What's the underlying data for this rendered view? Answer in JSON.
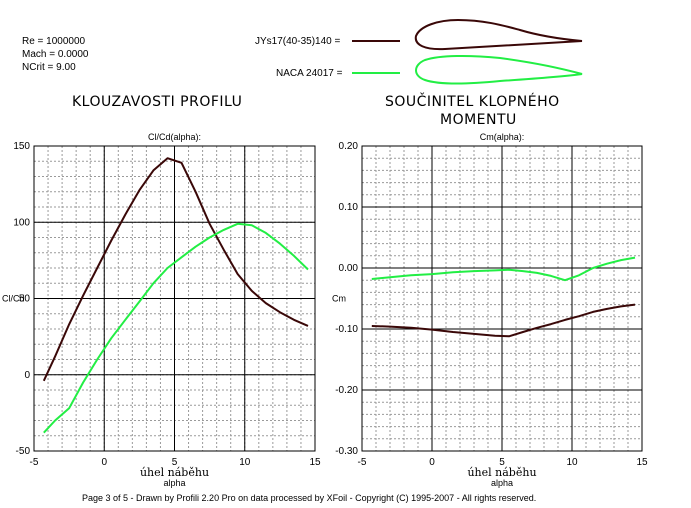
{
  "header": {
    "params": [
      "Re = 1000000",
      "Mach = 0.0000",
      "NCrit = 9.00"
    ],
    "profiles": [
      {
        "label": "JYs17(40-35)140 =",
        "color": "#3a0808"
      },
      {
        "label": "NACA 24017 =",
        "color": "#22ee44"
      }
    ]
  },
  "titles": {
    "left": "KLOUZAVOSTI PROFILU",
    "right_line1": "SOUČINITEL KLOPNÉHO",
    "right_line2": "MOMENTU"
  },
  "footer": "Page 3 of 5   -   Drawn by Profili 2.20 Pro on data processed by  XFoil - Copyright (C) 1995-2007 - All rights reserved.",
  "chart_data": [
    {
      "type": "line",
      "title": "Cl/Cd(alpha):",
      "xlabel": "úhel náběhu",
      "xlabel_sub": "alpha",
      "ylabel": "Cl/Cd",
      "xlim": [
        -5,
        15
      ],
      "ylim": [
        -50,
        150
      ],
      "xticks": [
        -5,
        0,
        5,
        10,
        15
      ],
      "xtick_labels": [
        "-5",
        "0",
        "5",
        "10",
        "15"
      ],
      "yticks": [
        -50,
        0,
        50,
        100,
        150
      ],
      "ytick_labels": [
        "-50",
        "0",
        "50",
        "100",
        "150"
      ],
      "grid": true,
      "series": [
        {
          "name": "JYs17(40-35)140",
          "color": "#3a0808",
          "x": [
            -4.3,
            -3.5,
            -2.5,
            -1.5,
            -0.5,
            0.5,
            1.5,
            2.5,
            3.5,
            4.5,
            5.5,
            6.5,
            7.5,
            8.5,
            9.5,
            10.5,
            11.5,
            12.5,
            13.5,
            14.5
          ],
          "y": [
            -4,
            12,
            33,
            52,
            70,
            88,
            105,
            121,
            134,
            142,
            139,
            120,
            99,
            82,
            66,
            55,
            47,
            41,
            36,
            32
          ]
        },
        {
          "name": "NACA 24017",
          "color": "#22ee44",
          "x": [
            -4.3,
            -3.5,
            -2.5,
            -1.5,
            -0.5,
            0.5,
            1.5,
            2.5,
            3.5,
            4.5,
            5.5,
            6.5,
            7.5,
            8.5,
            9.5,
            10.5,
            11.5,
            12.5,
            13.5,
            14.5
          ],
          "y": [
            -38,
            -30,
            -22,
            -5,
            10,
            24,
            36,
            48,
            60,
            70,
            77,
            84,
            90,
            95,
            99,
            98,
            93,
            86,
            78,
            69
          ]
        }
      ]
    },
    {
      "type": "line",
      "title": "Cm(alpha):",
      "xlabel": "úhel náběhu",
      "xlabel_sub": "alpha",
      "ylabel": "Cm",
      "xlim": [
        -5,
        15
      ],
      "ylim": [
        -0.3,
        0.2
      ],
      "xticks": [
        -5,
        0,
        5,
        10,
        15
      ],
      "xtick_labels": [
        "-5",
        "0",
        "5",
        "10",
        "15"
      ],
      "yticks": [
        -0.3,
        -0.2,
        -0.1,
        0.0,
        0.1,
        0.2
      ],
      "ytick_labels": [
        "-0.30",
        "-0.20",
        "-0.10",
        "0.00",
        "0.10",
        "0.20"
      ],
      "grid": true,
      "series": [
        {
          "name": "JYs17(40-35)140",
          "color": "#3a0808",
          "x": [
            -4.3,
            -3,
            -1.5,
            0,
            1.5,
            3,
            4.5,
            5.5,
            6.5,
            7.5,
            8.5,
            9.5,
            10.5,
            11.5,
            12.5,
            13.5,
            14.5
          ],
          "y": [
            -0.095,
            -0.096,
            -0.098,
            -0.101,
            -0.105,
            -0.108,
            -0.111,
            -0.112,
            -0.105,
            -0.098,
            -0.092,
            -0.085,
            -0.079,
            -0.072,
            -0.067,
            -0.063,
            -0.06
          ]
        },
        {
          "name": "NACA 24017",
          "color": "#22ee44",
          "x": [
            -4.3,
            -3,
            -1.5,
            0,
            1.5,
            3,
            4.5,
            5.5,
            6.5,
            7.5,
            8.5,
            9.5,
            10.5,
            11.5,
            12.5,
            13.5,
            14.5
          ],
          "y": [
            -0.018,
            -0.015,
            -0.012,
            -0.01,
            -0.007,
            -0.005,
            -0.004,
            -0.003,
            -0.005,
            -0.008,
            -0.013,
            -0.02,
            -0.012,
            0.0,
            0.007,
            0.013,
            0.017
          ]
        }
      ]
    }
  ]
}
